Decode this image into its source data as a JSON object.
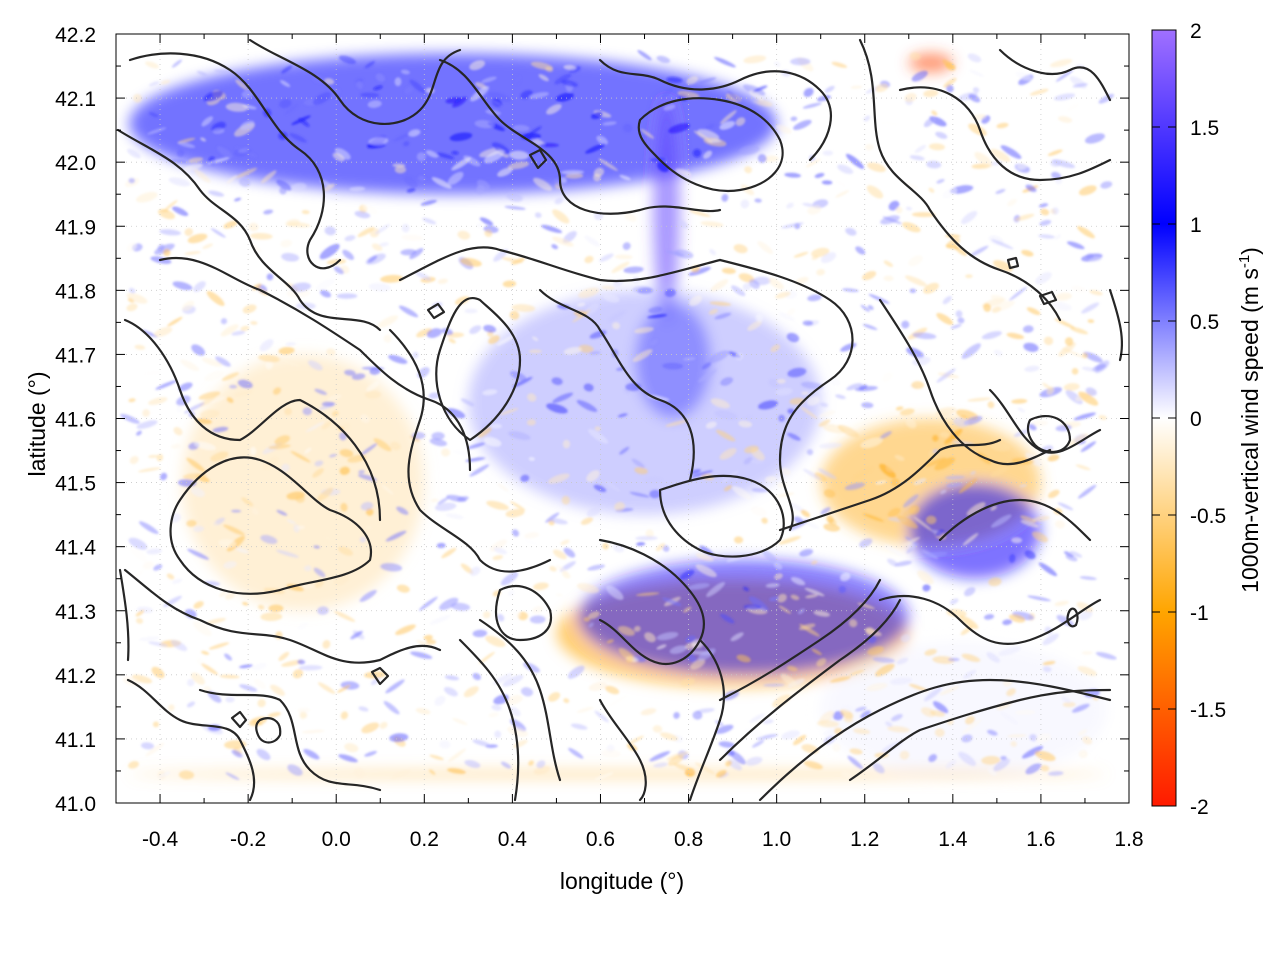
{
  "chart_data": {
    "type": "heatmap",
    "title": "",
    "xlabel": "longitude (°)",
    "ylabel": "latitude (°)",
    "colorbar": {
      "label_main": "1000m-vertical wind speed (m s",
      "label_sup": "-1",
      "label_end": ")",
      "range": [
        -2,
        2
      ],
      "ticks": [
        "2",
        "1.5",
        "1",
        "0.5",
        "0",
        "-0.5",
        "-1",
        "-1.5",
        "-2"
      ],
      "tick_values": [
        2,
        1.5,
        1,
        0.5,
        0,
        -0.5,
        -1,
        -1.5,
        -2
      ],
      "stops": [
        {
          "value": -2,
          "color": "#ff1a00"
        },
        {
          "value": -1,
          "color": "#ffa500"
        },
        {
          "value": 0,
          "color": "#ffffff"
        },
        {
          "value": 1,
          "color": "#0000ff"
        },
        {
          "value": 2,
          "color": "#a070ff"
        }
      ]
    },
    "xlim": [
      -0.5,
      1.8
    ],
    "ylim": [
      41.0,
      42.2
    ],
    "x_ticks": [
      "-0.4",
      "-0.2",
      "0.0",
      "0.2",
      "0.4",
      "0.6",
      "0.8",
      "1.0",
      "1.2",
      "1.4",
      "1.6",
      "1.8"
    ],
    "x_tick_values": [
      -0.4,
      -0.2,
      0.0,
      0.2,
      0.4,
      0.6,
      0.8,
      1.0,
      1.2,
      1.4,
      1.6,
      1.8
    ],
    "y_ticks": [
      "41.0",
      "41.1",
      "41.2",
      "41.3",
      "41.4",
      "41.5",
      "41.6",
      "41.7",
      "41.8",
      "41.9",
      "42.0",
      "42.1",
      "42.2"
    ],
    "y_tick_values": [
      41.0,
      41.1,
      41.2,
      41.3,
      41.4,
      41.5,
      41.6,
      41.7,
      41.8,
      41.9,
      42.0,
      42.1,
      42.2
    ],
    "grid": true,
    "data_domain": {
      "lon": [
        -0.47,
        1.75
      ],
      "lat": [
        41.04,
        42.17
      ]
    },
    "features": [
      {
        "name": "northern-band-positive",
        "lon": [
          -0.47,
          1.0
        ],
        "lat": [
          41.95,
          42.17
        ],
        "value": 1.0
      },
      {
        "name": "ridge-jet-north",
        "lon": [
          0.72,
          0.78
        ],
        "lat": [
          41.75,
          42.1
        ],
        "value": 1.6
      },
      {
        "name": "ridge-jet-south",
        "lon": [
          0.68,
          0.85
        ],
        "lat": [
          41.6,
          41.78
        ],
        "value": 1.0
      },
      {
        "name": "central-plain-weak-positive",
        "lon": [
          0.3,
          1.1
        ],
        "lat": [
          41.45,
          41.8
        ],
        "value": 0.35
      },
      {
        "name": "western-weak-negative",
        "lon": [
          -0.35,
          0.2
        ],
        "lat": [
          41.3,
          41.7
        ],
        "value": -0.3
      },
      {
        "name": "coastal-range-negative",
        "lon": [
          0.5,
          1.3
        ],
        "lat": [
          41.18,
          41.35
        ],
        "value": -1.0
      },
      {
        "name": "coastal-range-positive",
        "lon": [
          0.55,
          1.3
        ],
        "lat": [
          41.2,
          41.38
        ],
        "value": 1.2
      },
      {
        "name": "east-diagonal-negative",
        "lon": [
          1.1,
          1.6
        ],
        "lat": [
          41.4,
          41.6
        ],
        "value": -0.8
      },
      {
        "name": "east-diagonal-positive",
        "lon": [
          1.3,
          1.6
        ],
        "lat": [
          41.35,
          41.5
        ],
        "value": 1.1
      },
      {
        "name": "northeast-strong-negative",
        "lon": [
          1.3,
          1.4
        ],
        "lat": [
          42.14,
          42.17
        ],
        "value": -1.7
      },
      {
        "name": "sea-near-zero",
        "lon": [
          1.1,
          1.75
        ],
        "lat": [
          41.04,
          41.25
        ],
        "value": 0.05
      },
      {
        "name": "boundary-frame-negative",
        "lon": [
          -0.47,
          1.75
        ],
        "lat": [
          41.04,
          41.05
        ],
        "value": -0.6
      }
    ]
  }
}
